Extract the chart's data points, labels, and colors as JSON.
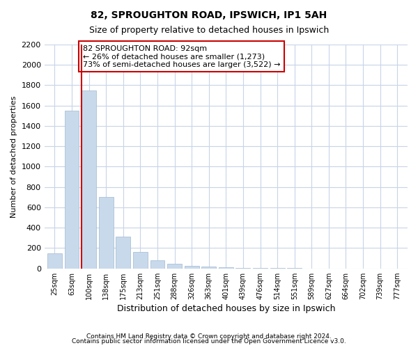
{
  "title1": "82, SPROUGHTON ROAD, IPSWICH, IP1 5AH",
  "title2": "Size of property relative to detached houses in Ipswich",
  "xlabel": "Distribution of detached houses by size in Ipswich",
  "ylabel": "Number of detached properties",
  "categories": [
    "25sqm",
    "63sqm",
    "100sqm",
    "138sqm",
    "175sqm",
    "213sqm",
    "251sqm",
    "288sqm",
    "326sqm",
    "363sqm",
    "401sqm",
    "439sqm",
    "476sqm",
    "514sqm",
    "551sqm",
    "589sqm",
    "627sqm",
    "664sqm",
    "702sqm",
    "739sqm",
    "777sqm"
  ],
  "values": [
    150,
    1550,
    1750,
    700,
    310,
    160,
    80,
    45,
    25,
    20,
    10,
    5,
    5,
    2,
    2,
    1,
    1,
    1,
    1,
    1,
    1
  ],
  "bar_color": "#c9d9ec",
  "bar_edge_color": "#9fb8d0",
  "highlight_line_color": "#cc0000",
  "vline_bar_index": 2,
  "annotation_text": "82 SPROUGHTON ROAD: 92sqm\n← 26% of detached houses are smaller (1,273)\n73% of semi-detached houses are larger (3,522) →",
  "annotation_box_color": "#ffffff",
  "annotation_box_edge": "#cc0000",
  "ylim": [
    0,
    2200
  ],
  "yticks": [
    0,
    200,
    400,
    600,
    800,
    1000,
    1200,
    1400,
    1600,
    1800,
    2000,
    2200
  ],
  "footer1": "Contains HM Land Registry data © Crown copyright and database right 2024.",
  "footer2": "Contains public sector information licensed under the Open Government Licence v3.0.",
  "bg_color": "#ffffff",
  "grid_color": "#c8d4e8"
}
